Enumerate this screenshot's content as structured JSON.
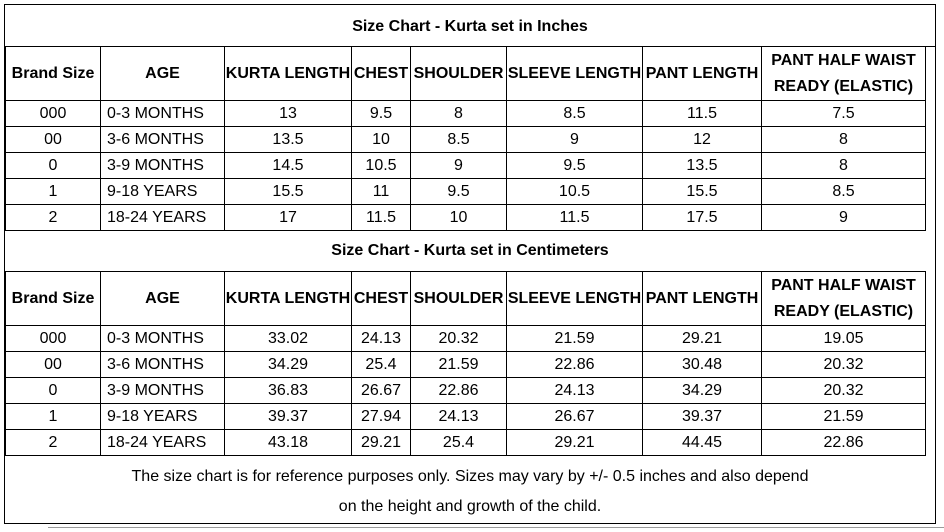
{
  "inches": {
    "title": "Size Chart - Kurta set in Inches",
    "headers": [
      "Brand Size",
      "AGE",
      "KURTA LENGTH",
      "CHEST",
      "SHOULDER",
      "SLEEVE LENGTH",
      "PANT LENGTH",
      "PANT HALF WAIST READY (ELASTIC)"
    ],
    "rows": [
      [
        "000",
        "0-3 MONTHS",
        "13",
        "9.5",
        "8",
        "8.5",
        "11.5",
        "7.5"
      ],
      [
        "00",
        "3-6 MONTHS",
        "13.5",
        "10",
        "8.5",
        "9",
        "12",
        "8"
      ],
      [
        "0",
        "3-9 MONTHS",
        "14.5",
        "10.5",
        "9",
        "9.5",
        "13.5",
        "8"
      ],
      [
        "1",
        "9-18 YEARS",
        "15.5",
        "11",
        "9.5",
        "10.5",
        "15.5",
        "8.5"
      ],
      [
        "2",
        "18-24 YEARS",
        "17",
        "11.5",
        "10",
        "11.5",
        "17.5",
        "9"
      ]
    ]
  },
  "centimeters": {
    "title": "Size Chart - Kurta set in Centimeters",
    "headers": [
      "Brand Size",
      "AGE",
      "KURTA LENGTH",
      "CHEST",
      "SHOULDER",
      "SLEEVE LENGTH",
      "PANT LENGTH",
      "PANT HALF WAIST READY (ELASTIC)"
    ],
    "rows": [
      [
        "000",
        "0-3 MONTHS",
        "33.02",
        "24.13",
        "20.32",
        "21.59",
        "29.21",
        "19.05"
      ],
      [
        "00",
        "3-6 MONTHS",
        "34.29",
        "25.4",
        "21.59",
        "22.86",
        "30.48",
        "20.32"
      ],
      [
        "0",
        "3-9 MONTHS",
        "36.83",
        "26.67",
        "22.86",
        "24.13",
        "34.29",
        "20.32"
      ],
      [
        "1",
        "9-18 YEARS",
        "39.37",
        "27.94",
        "24.13",
        "26.67",
        "39.37",
        "21.59"
      ],
      [
        "2",
        "18-24 YEARS",
        "43.18",
        "29.21",
        "25.4",
        "29.21",
        "44.45",
        "22.86"
      ]
    ]
  },
  "note": {
    "line1": "The size chart is for reference purposes only. Sizes may vary by +/- 0.5 inches and also depend",
    "line2": "on the height and growth of the child."
  }
}
